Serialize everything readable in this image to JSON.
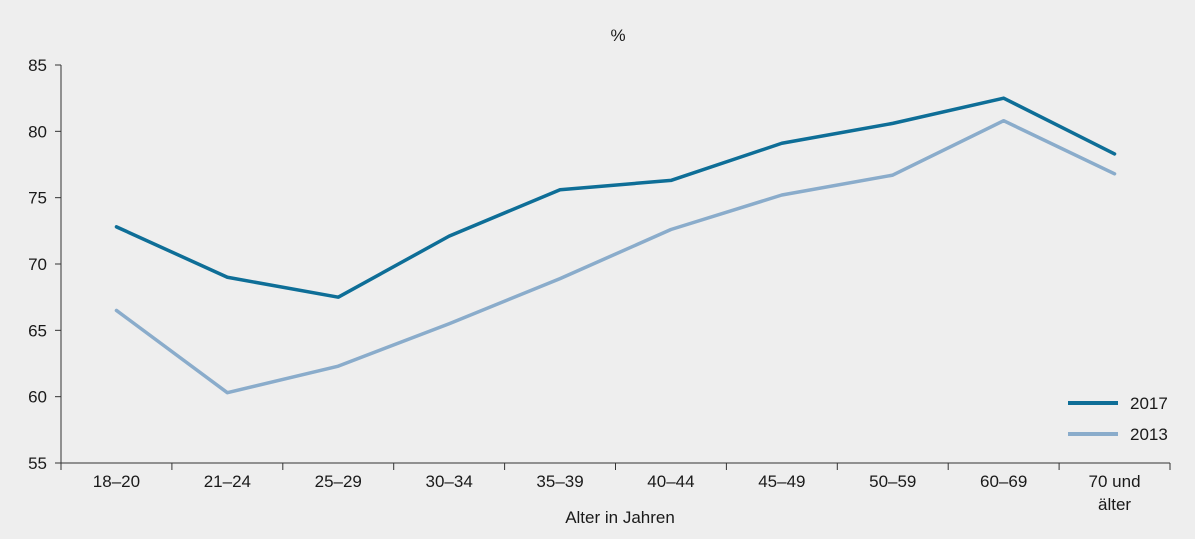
{
  "chart_data": {
    "type": "line",
    "title": "",
    "unit_label": "%",
    "xlabel": "Alter in Jahren",
    "ylabel": "",
    "categories": [
      "18–20",
      "21–24",
      "25–29",
      "30–34",
      "35–39",
      "40–44",
      "45–49",
      "50–59",
      "60–69",
      "70 und älter"
    ],
    "category_lines": [
      [
        "18–20"
      ],
      [
        "21–24"
      ],
      [
        "25–29"
      ],
      [
        "30–34"
      ],
      [
        "35–39"
      ],
      [
        "40–44"
      ],
      [
        "45–49"
      ],
      [
        "50–59"
      ],
      [
        "60–69"
      ],
      [
        "70 und",
        "älter"
      ]
    ],
    "yticks": [
      "55",
      "60",
      "65",
      "70",
      "75",
      "80",
      "85"
    ],
    "ylim": [
      55,
      85
    ],
    "grid": false,
    "legend_position": "bottom-right",
    "series": [
      {
        "name": "2017",
        "color": "#0e6e97",
        "values": [
          72.8,
          69.0,
          67.5,
          72.1,
          75.6,
          76.3,
          79.1,
          80.6,
          82.5,
          78.3
        ]
      },
      {
        "name": "2013",
        "color": "#8aaccb",
        "values": [
          66.5,
          60.3,
          62.3,
          65.5,
          68.9,
          72.6,
          75.2,
          76.7,
          80.8,
          76.8
        ]
      }
    ]
  }
}
